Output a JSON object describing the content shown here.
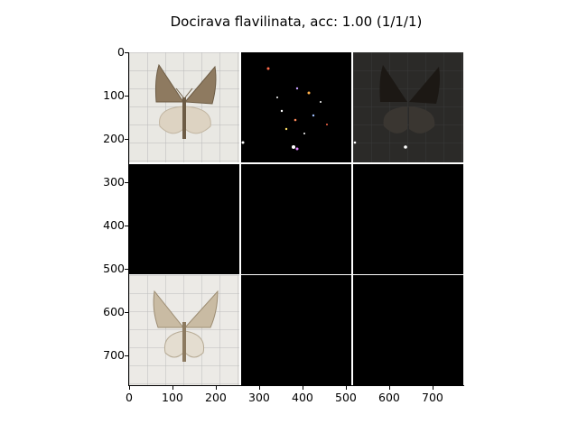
{
  "figure": {
    "title": "Docirava flavilinata, acc: 1.00 (1/1/1)"
  },
  "axes": {
    "x_ticks": [
      "0",
      "100",
      "200",
      "300",
      "400",
      "500",
      "600",
      "700"
    ],
    "y_ticks": [
      "0",
      "100",
      "200",
      "300",
      "400",
      "500",
      "600",
      "700"
    ]
  },
  "grid": {
    "rows": 3,
    "cols": 3,
    "cells": [
      {
        "row": 0,
        "col": 0,
        "content": "moth-photo-original"
      },
      {
        "row": 0,
        "col": 1,
        "content": "attribution-map-sparse"
      },
      {
        "row": 0,
        "col": 2,
        "content": "darkened-overlay"
      },
      {
        "row": 1,
        "col": 0,
        "content": "blank"
      },
      {
        "row": 1,
        "col": 1,
        "content": "blank"
      },
      {
        "row": 1,
        "col": 2,
        "content": "blank"
      },
      {
        "row": 2,
        "col": 0,
        "content": "moth-photo-reconstruction"
      },
      {
        "row": 2,
        "col": 1,
        "content": "blank"
      },
      {
        "row": 2,
        "col": 2,
        "content": "blank"
      }
    ]
  },
  "colors": {
    "background": "#ffffff",
    "panel": "#000000",
    "paper": "#e9e8e3",
    "wing_fore": "#8e7a60",
    "wing_hind": "#ddd3c2"
  }
}
